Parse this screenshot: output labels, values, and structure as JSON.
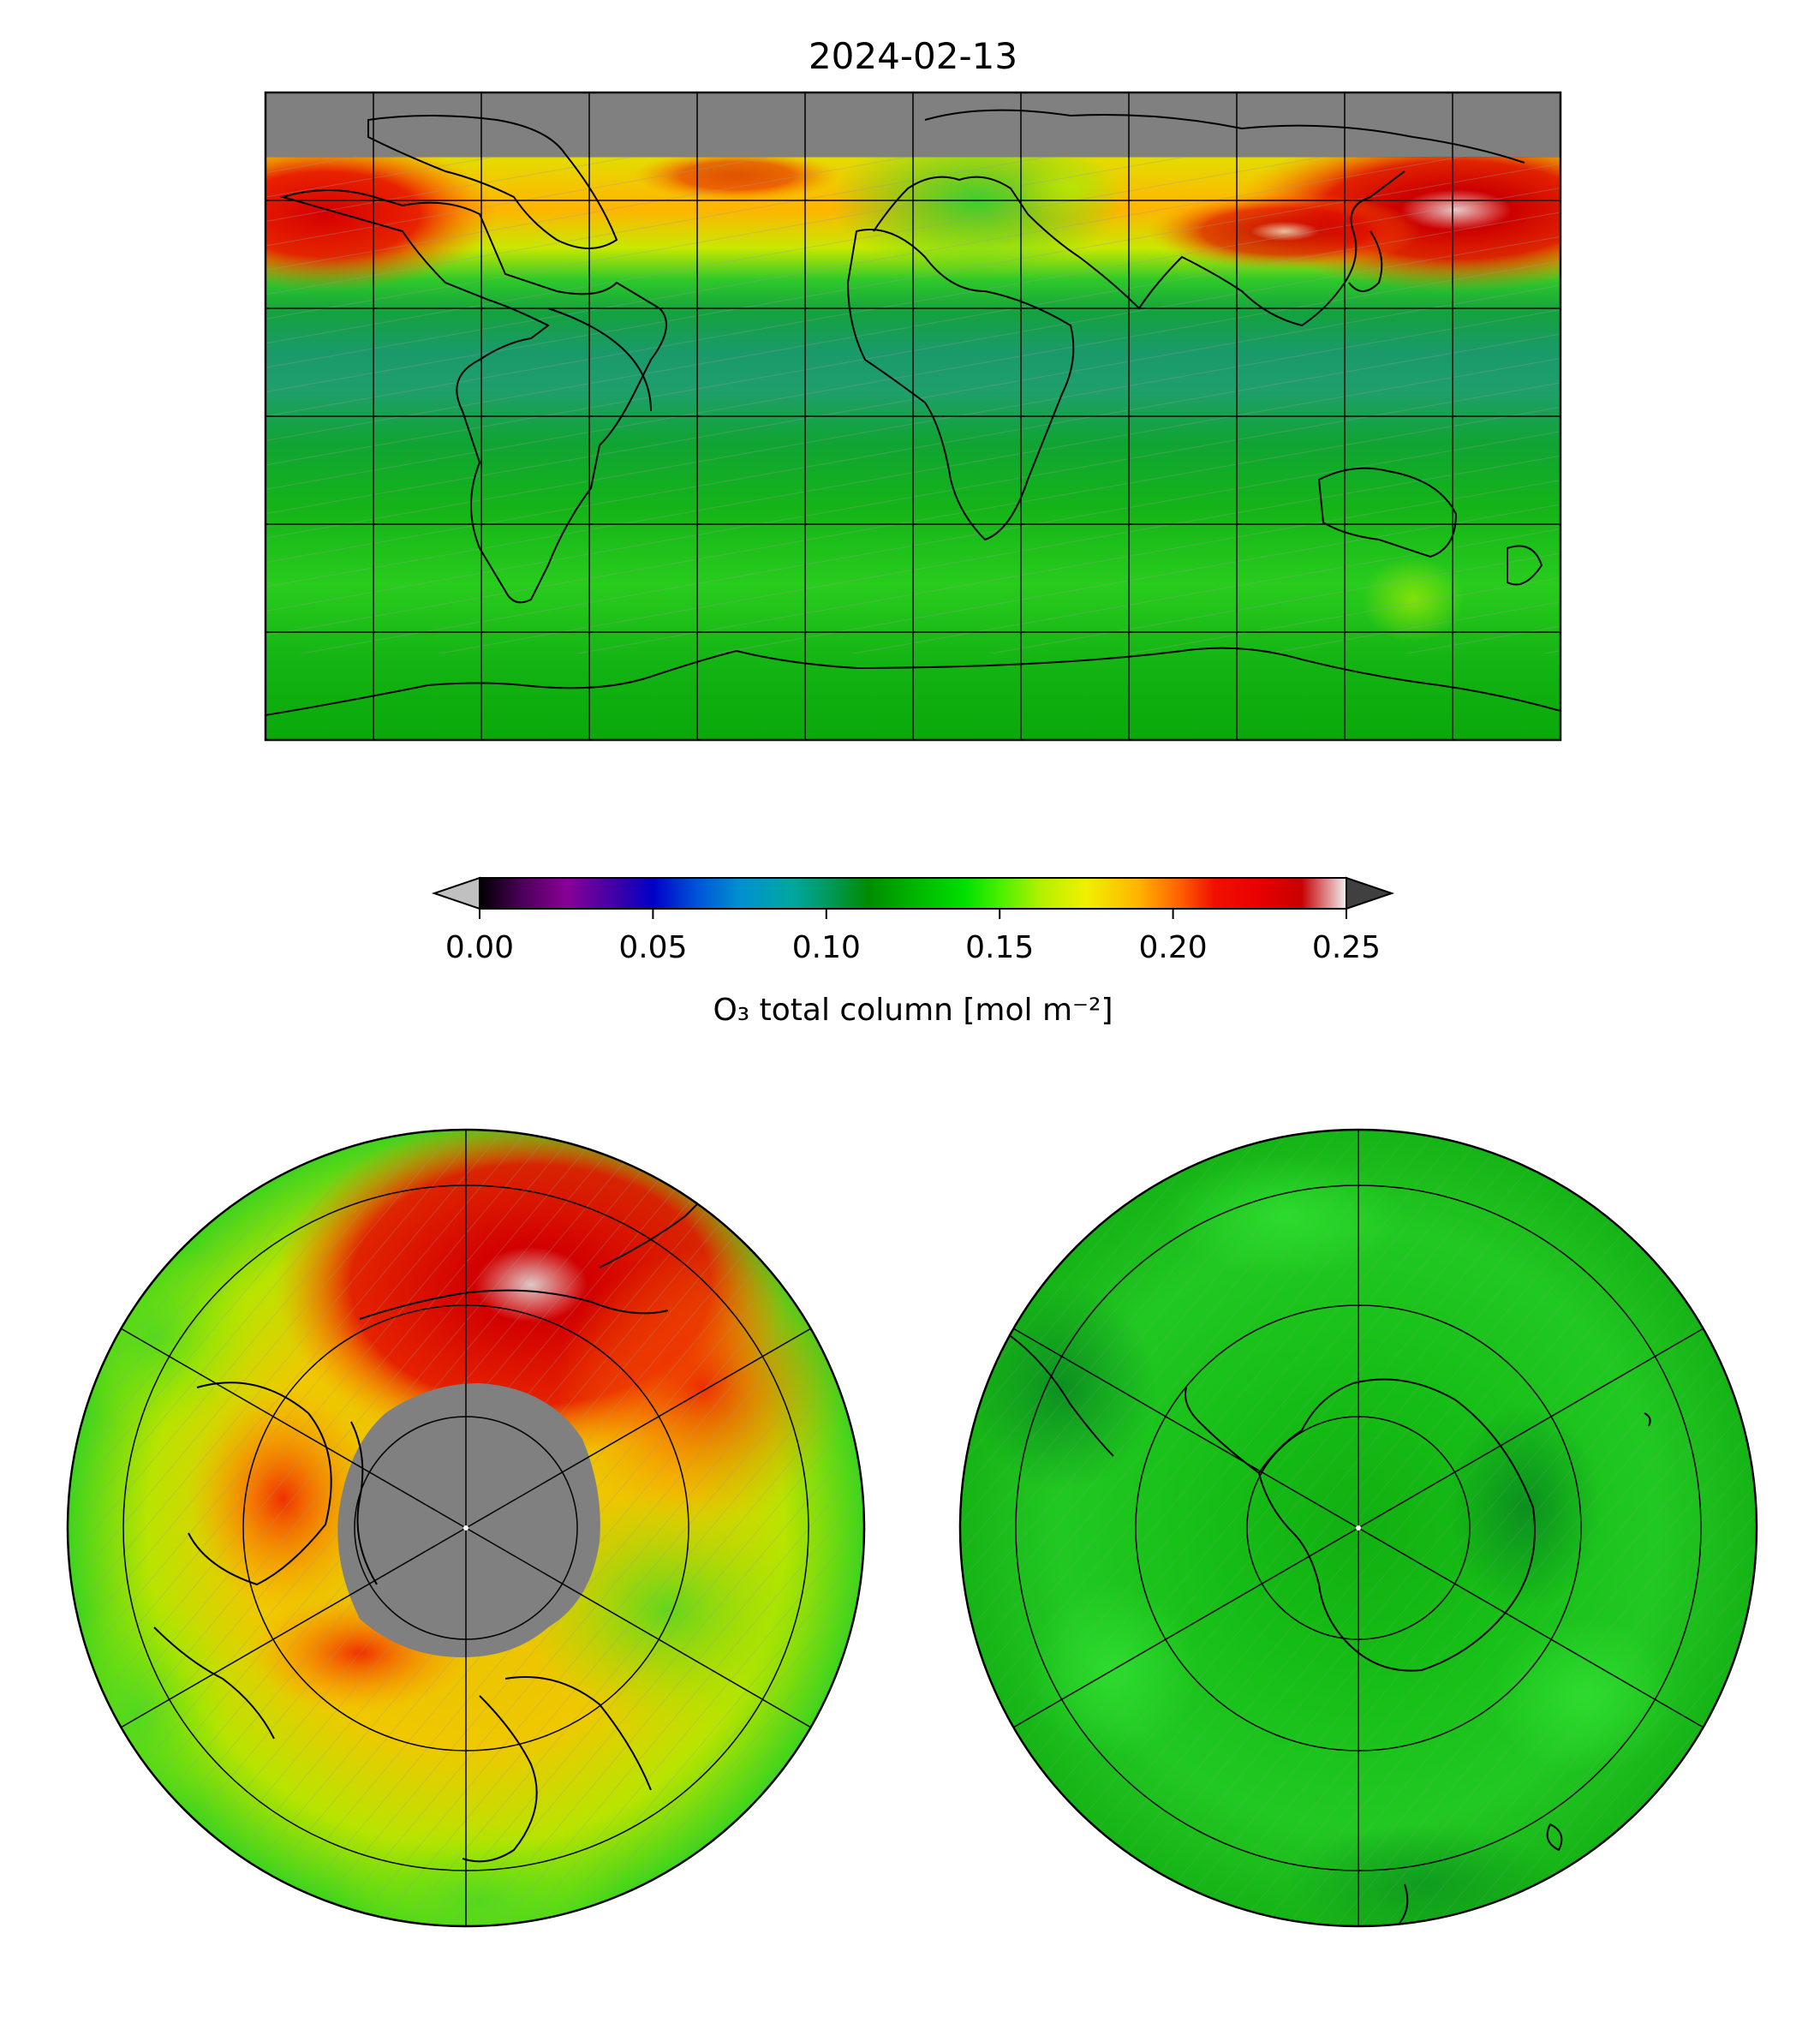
{
  "title": "2024-02-13",
  "colorbar": {
    "label": "O₃ total column [mol m⁻²]",
    "min": 0.0,
    "max": 0.25,
    "extend": "both",
    "under_color": "#c0c0c0",
    "over_color": "#404040",
    "ticks": [
      "0.00",
      "0.05",
      "0.10",
      "0.15",
      "0.20",
      "0.25"
    ],
    "tick_values": [
      0.0,
      0.05,
      0.1,
      0.15,
      0.2,
      0.25
    ],
    "colormap": [
      {
        "v": 0.0,
        "c": "#000000"
      },
      {
        "v": 0.012,
        "c": "#4a0058"
      },
      {
        "v": 0.025,
        "c": "#880096"
      },
      {
        "v": 0.04,
        "c": "#3a00a8"
      },
      {
        "v": 0.05,
        "c": "#0000c8"
      },
      {
        "v": 0.062,
        "c": "#0050d8"
      },
      {
        "v": 0.075,
        "c": "#0090d0"
      },
      {
        "v": 0.09,
        "c": "#00a8a0"
      },
      {
        "v": 0.1,
        "c": "#009a60"
      },
      {
        "v": 0.112,
        "c": "#008c00"
      },
      {
        "v": 0.125,
        "c": "#00b400"
      },
      {
        "v": 0.14,
        "c": "#00e000"
      },
      {
        "v": 0.15,
        "c": "#48f000"
      },
      {
        "v": 0.162,
        "c": "#b4f000"
      },
      {
        "v": 0.175,
        "c": "#f0f000"
      },
      {
        "v": 0.19,
        "c": "#ffb400"
      },
      {
        "v": 0.202,
        "c": "#ff6000"
      },
      {
        "v": 0.212,
        "c": "#f01000"
      },
      {
        "v": 0.225,
        "c": "#e80000"
      },
      {
        "v": 0.237,
        "c": "#c80000"
      },
      {
        "v": 0.25,
        "c": "#f0f0f0"
      }
    ]
  },
  "maps": [
    {
      "name": "global",
      "projection": "equirectangular",
      "lon_range": [
        -180,
        180
      ],
      "lat_range": [
        -90,
        90
      ],
      "gridline_lon_step": 30,
      "gridline_lat_step": 30,
      "missing_data_color": "#808080"
    },
    {
      "name": "north-polar",
      "projection": "north-polar-stereographic",
      "gridline_lon_step": 60,
      "missing_data_color": "#808080"
    },
    {
      "name": "south-polar",
      "projection": "south-polar-stereographic",
      "gridline_lon_step": 60
    }
  ]
}
